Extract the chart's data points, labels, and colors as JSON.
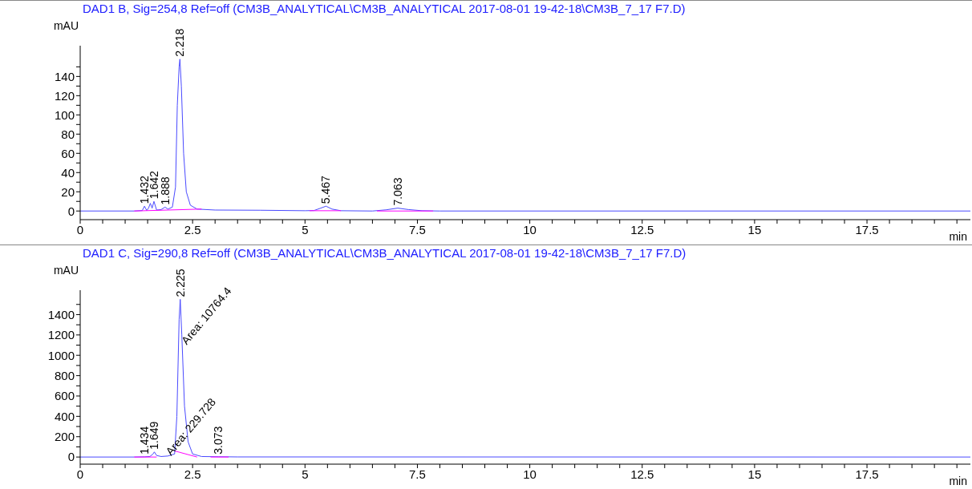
{
  "chart_data": [
    {
      "type": "line",
      "title": "DAD1 B, Sig=254,8 Ref=off (CM3B_ANALYTICAL\\CM3B_ANALYTICAL 2017-08-01 19-42-18\\CM3B_7_17 F7.D)",
      "xlabel": "min",
      "ylabel": "mAU",
      "xlim": [
        0,
        19.8
      ],
      "ylim": [
        -9,
        172
      ],
      "xticks": [
        0,
        {
          "value": 0.5,
          "label": null
        },
        {
          "value": 1,
          "label": null
        },
        {
          "value": 1.5,
          "label": null
        },
        {
          "value": 2,
          "label": null
        },
        2.5,
        {
          "value": 3,
          "label": null
        },
        {
          "value": 3.5,
          "label": null
        },
        {
          "value": 4,
          "label": null
        },
        {
          "value": 4.5,
          "label": null
        },
        5,
        {
          "value": 5.5,
          "label": null
        },
        {
          "value": 6,
          "label": null
        },
        {
          "value": 6.5,
          "label": null
        },
        {
          "value": 7,
          "label": null
        },
        7.5,
        {
          "value": 8,
          "label": null
        },
        {
          "value": 8.5,
          "label": null
        },
        {
          "value": 9,
          "label": null
        },
        {
          "value": 9.5,
          "label": null
        },
        10,
        {
          "value": 10.5,
          "label": null
        },
        {
          "value": 11,
          "label": null
        },
        {
          "value": 11.5,
          "label": null
        },
        {
          "value": 12,
          "label": null
        },
        12.5,
        {
          "value": 13,
          "label": null
        },
        {
          "value": 13.5,
          "label": null
        },
        {
          "value": 14,
          "label": null
        },
        {
          "value": 14.5,
          "label": null
        },
        15,
        {
          "value": 15.5,
          "label": null
        },
        {
          "value": 16,
          "label": null
        },
        {
          "value": 16.5,
          "label": null
        },
        {
          "value": 17,
          "label": null
        },
        17.5,
        {
          "value": 18,
          "label": null
        },
        {
          "value": 18.5,
          "label": null
        },
        {
          "value": 19,
          "label": null
        },
        {
          "value": 19.5,
          "label": null
        }
      ],
      "yticks": [
        0,
        {
          "value": 10,
          "label": null
        },
        20,
        {
          "value": 30,
          "label": null
        },
        40,
        {
          "value": 50,
          "label": null
        },
        60,
        {
          "value": 70,
          "label": null
        },
        80,
        {
          "value": 90,
          "label": null
        },
        100,
        {
          "value": 110,
          "label": null
        },
        120,
        {
          "value": 130,
          "label": null
        },
        140,
        {
          "value": 150,
          "label": null
        }
      ],
      "grid": false,
      "marker": "none",
      "line_style": "solid",
      "series": [
        {
          "color": "#4a4aff",
          "x": [
            0,
            1.2,
            1.38,
            1.43,
            1.48,
            1.52,
            1.56,
            1.6,
            1.64,
            1.7,
            1.8,
            1.888,
            1.95,
            2.05,
            2.12,
            2.16,
            2.2,
            2.218,
            2.25,
            2.3,
            2.36,
            2.45,
            2.6,
            3,
            4,
            5,
            5.2,
            5.35,
            5.467,
            5.6,
            5.8,
            6.5,
            6.8,
            7.063,
            7.3,
            7.6,
            8,
            19.8
          ],
          "values": [
            0,
            0,
            0.5,
            5,
            0.5,
            3,
            8,
            3,
            10,
            1,
            1.5,
            4,
            2,
            4,
            25,
            110,
            150,
            158,
            130,
            60,
            20,
            6,
            2,
            1,
            0.8,
            0.3,
            0.5,
            3,
            5,
            2,
            0.3,
            0,
            1.2,
            3,
            1.5,
            0.3,
            0,
            0
          ]
        },
        {
          "color": "#ff00ff",
          "x": [
            1.2,
            2.7,
            2.75,
            5.1,
            5.8,
            5.85,
            6.6,
            7.85
          ],
          "values": [
            0,
            2,
            null,
            0.3,
            0.3,
            null,
            0,
            0
          ]
        }
      ],
      "annotations": [
        {
          "text": "1.432",
          "x": 1.432,
          "y": 5
        },
        {
          "text": "1.642",
          "x": 1.642,
          "y": 10
        },
        {
          "text": "1.888",
          "x": 1.888,
          "y": 4
        },
        {
          "text": "2.218",
          "x": 2.218,
          "y": 158
        },
        {
          "text": "5.467",
          "x": 5.467,
          "y": 5
        },
        {
          "text": "7.063",
          "x": 7.063,
          "y": 3
        }
      ]
    },
    {
      "type": "line",
      "title": "DAD1 C, Sig=290,8 Ref=off (CM3B_ANALYTICAL\\CM3B_ANALYTICAL 2017-08-01 19-42-18\\CM3B_7_17 F7.D)",
      "xlabel": "min",
      "ylabel": "mAU",
      "xlim": [
        0,
        19.8
      ],
      "ylim": [
        -70,
        1640
      ],
      "xticks": [
        0,
        {
          "value": 0.5,
          "label": null
        },
        {
          "value": 1,
          "label": null
        },
        {
          "value": 1.5,
          "label": null
        },
        {
          "value": 2,
          "label": null
        },
        2.5,
        {
          "value": 3,
          "label": null
        },
        {
          "value": 3.5,
          "label": null
        },
        {
          "value": 4,
          "label": null
        },
        {
          "value": 4.5,
          "label": null
        },
        5,
        {
          "value": 5.5,
          "label": null
        },
        {
          "value": 6,
          "label": null
        },
        {
          "value": 6.5,
          "label": null
        },
        {
          "value": 7,
          "label": null
        },
        7.5,
        {
          "value": 8,
          "label": null
        },
        {
          "value": 8.5,
          "label": null
        },
        {
          "value": 9,
          "label": null
        },
        {
          "value": 9.5,
          "label": null
        },
        10,
        {
          "value": 10.5,
          "label": null
        },
        {
          "value": 11,
          "label": null
        },
        {
          "value": 11.5,
          "label": null
        },
        {
          "value": 12,
          "label": null
        },
        12.5,
        {
          "value": 13,
          "label": null
        },
        {
          "value": 13.5,
          "label": null
        },
        {
          "value": 14,
          "label": null
        },
        {
          "value": 14.5,
          "label": null
        },
        15,
        {
          "value": 15.5,
          "label": null
        },
        {
          "value": 16,
          "label": null
        },
        {
          "value": 16.5,
          "label": null
        },
        {
          "value": 17,
          "label": null
        },
        17.5,
        {
          "value": 18,
          "label": null
        },
        {
          "value": 18.5,
          "label": null
        },
        {
          "value": 19,
          "label": null
        },
        {
          "value": 19.5,
          "label": null
        }
      ],
      "yticks": [
        0,
        {
          "value": 100,
          "label": null
        },
        200,
        {
          "value": 300,
          "label": null
        },
        400,
        {
          "value": 500,
          "label": null
        },
        600,
        {
          "value": 700,
          "label": null
        },
        800,
        {
          "value": 900,
          "label": null
        },
        1000,
        {
          "value": 1100,
          "label": null
        },
        1200,
        {
          "value": 1300,
          "label": null
        },
        1400,
        {
          "value": 1500,
          "label": null
        }
      ],
      "grid": false,
      "marker": "none",
      "line_style": "solid",
      "series": [
        {
          "color": "#4a4aff",
          "x": [
            0,
            1.2,
            1.434,
            1.55,
            1.62,
            1.649,
            1.7,
            1.8,
            1.95,
            2.1,
            2.15,
            2.2,
            2.225,
            2.26,
            2.32,
            2.4,
            2.5,
            2.7,
            3.073,
            3.5,
            19.8
          ],
          "values": [
            0,
            0,
            2,
            5,
            30,
            50,
            15,
            5,
            10,
            30,
            400,
            1350,
            1550,
            1200,
            500,
            150,
            30,
            5,
            3,
            1,
            0
          ]
        },
        {
          "color": "#ff00ff",
          "x": [
            1.2,
            1.7,
            1.75,
            2.1,
            2.6,
            2.65,
            2.9,
            3.3
          ],
          "values": [
            0,
            0,
            null,
            60,
            0,
            null,
            0,
            0
          ]
        }
      ],
      "annotations": [
        {
          "text": "1.434",
          "x": 1.434,
          "y": 2
        },
        {
          "text": "1.649",
          "x": 1.649,
          "y": 50
        },
        {
          "text": "Area: 229.728",
          "x": 1.95,
          "y": 10
        },
        {
          "text": "2.225",
          "x": 2.225,
          "y": 1550
        },
        {
          "text": "Area: 10764.4",
          "x": 2.3,
          "y": 1100
        },
        {
          "text": "3.073",
          "x": 3.073,
          "y": 3
        }
      ]
    }
  ]
}
